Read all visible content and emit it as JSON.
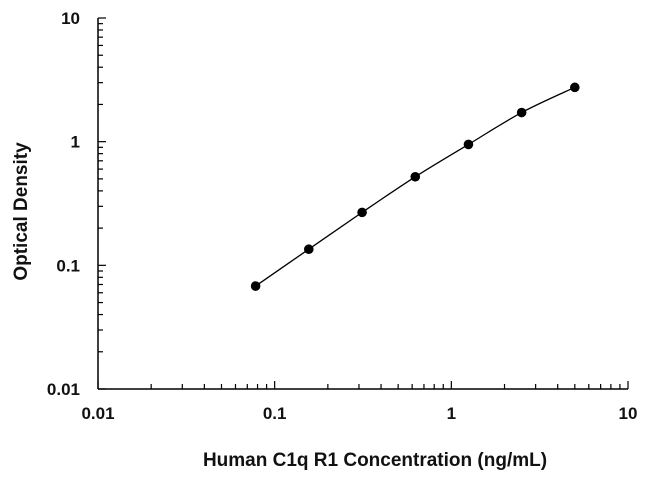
{
  "chart_data": {
    "type": "scatter",
    "xlabel": "Human C1q R1 Concentration (ng/mL)",
    "ylabel": "Optical Density",
    "x_scale": "log",
    "y_scale": "log",
    "xlim": [
      0.01,
      10
    ],
    "ylim": [
      0.01,
      10
    ],
    "x_tick_labels": [
      "0.01",
      "0.1",
      "1",
      "10"
    ],
    "y_tick_labels": [
      "0.01",
      "0.1",
      "1",
      "10"
    ],
    "grid": false,
    "legend": "none",
    "fit_line": true,
    "series": [
      {
        "x": [
          0.078,
          0.156,
          0.3125,
          0.625,
          1.25,
          2.5,
          5.0
        ],
        "y": [
          0.068,
          0.135,
          0.268,
          0.52,
          0.95,
          1.72,
          2.75
        ],
        "color": "#000000"
      }
    ]
  }
}
